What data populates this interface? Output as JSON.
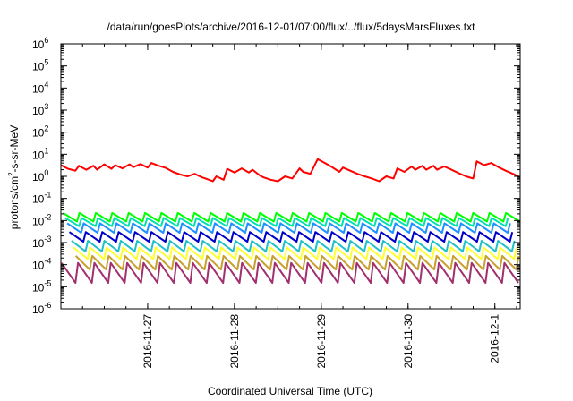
{
  "chart_data": {
    "type": "line",
    "title": "/data/run/goesPlots/archive/2016-12-01/07:00/flux/../flux/5daysMarsFluxes.txt",
    "xlabel": "Coordinated Universal Time (UTC)",
    "ylabel_parts": {
      "pre": "protons/cm",
      "sup": "2",
      "post": "-s-sr-MeV"
    },
    "yscale": "log",
    "ylim": [
      1e-06,
      1000000.0
    ],
    "xlim": [
      "2016-11-26T00:00",
      "2016-12-01T07:00"
    ],
    "x_ticks": [
      {
        "label": "2016-11-27",
        "at": "2016-11-27T00:00"
      },
      {
        "label": "2016-11-28",
        "at": "2016-11-28T00:00"
      },
      {
        "label": "2016-11-29",
        "at": "2016-11-29T00:00"
      },
      {
        "label": "2016-11-30",
        "at": "2016-11-30T00:00"
      },
      {
        "label": "2016-12-1",
        "at": "2016-12-01T00:00"
      }
    ],
    "y_ticks": [
      {
        "base": "10",
        "exp": "-6"
      },
      {
        "base": "10",
        "exp": "-5"
      },
      {
        "base": "10",
        "exp": "-4"
      },
      {
        "base": "10",
        "exp": "-3"
      },
      {
        "base": "10",
        "exp": "-2"
      },
      {
        "base": "10",
        "exp": "-1"
      },
      {
        "base": "10",
        "exp": "0"
      },
      {
        "base": "10",
        "exp": "1"
      },
      {
        "base": "10",
        "exp": "2"
      },
      {
        "base": "10",
        "exp": "3"
      },
      {
        "base": "10",
        "exp": "4"
      },
      {
        "base": "10",
        "exp": "5"
      },
      {
        "base": "10",
        "exp": "6"
      }
    ],
    "grid": false,
    "series": [
      {
        "color": "#ff0000",
        "x": [
          "2016-11-26T00:00",
          "2016-11-26T02:00",
          "2016-11-26T04:00",
          "2016-11-26T05:00",
          "2016-11-26T07:00",
          "2016-11-26T09:00",
          "2016-11-26T10:00",
          "2016-11-26T12:00",
          "2016-11-26T14:00",
          "2016-11-26T15:00",
          "2016-11-26T17:00",
          "2016-11-26T19:00",
          "2016-11-26T20:00",
          "2016-11-26T22:00",
          "2016-11-27T00:00",
          "2016-11-27T01:00",
          "2016-11-27T03:00",
          "2016-11-27T05:00",
          "2016-11-27T07:00",
          "2016-11-27T09:00",
          "2016-11-27T11:00",
          "2016-11-27T13:00",
          "2016-11-27T15:00",
          "2016-11-27T16:00",
          "2016-11-27T18:00",
          "2016-11-27T19:00",
          "2016-11-27T21:00",
          "2016-11-27T22:00",
          "2016-11-28T00:00",
          "2016-11-28T02:00",
          "2016-11-28T04:00",
          "2016-11-28T05:00",
          "2016-11-28T07:00",
          "2016-11-28T08:00",
          "2016-11-28T10:00",
          "2016-11-28T12:00",
          "2016-11-28T14:00",
          "2016-11-28T16:00",
          "2016-11-28T18:00",
          "2016-11-28T19:00",
          "2016-11-28T21:00",
          "2016-11-28T23:00",
          "2016-11-29T01:00",
          "2016-11-29T03:00",
          "2016-11-29T05:00",
          "2016-11-29T06:00",
          "2016-11-29T08:00",
          "2016-11-29T10:00",
          "2016-11-29T12:00",
          "2016-11-29T14:00",
          "2016-11-29T16:00",
          "2016-11-29T18:00",
          "2016-11-29T20:00",
          "2016-11-29T21:00",
          "2016-11-29T23:00",
          "2016-11-30T01:00",
          "2016-11-30T02:00",
          "2016-11-30T04:00",
          "2016-11-30T05:00",
          "2016-11-30T07:00",
          "2016-11-30T08:00",
          "2016-11-30T10:00",
          "2016-11-30T12:00",
          "2016-11-30T14:00",
          "2016-11-30T16:00",
          "2016-11-30T18:00",
          "2016-11-30T19:00",
          "2016-11-30T21:00",
          "2016-11-30T23:00",
          "2016-12-01T01:00",
          "2016-12-01T03:00",
          "2016-12-01T05:00",
          "2016-12-01T07:00"
        ],
        "values": [
          3.2,
          2.2,
          1.8,
          3.0,
          2.0,
          3.0,
          2.0,
          3.5,
          2.2,
          3.2,
          2.3,
          3.5,
          2.6,
          3.6,
          2.5,
          4.0,
          3.0,
          2.4,
          1.6,
          1.2,
          1.0,
          1.3,
          0.9,
          0.8,
          0.6,
          1.0,
          0.7,
          2.2,
          1.5,
          2.3,
          1.5,
          2.0,
          1.1,
          0.9,
          0.7,
          0.6,
          1.0,
          0.8,
          2.3,
          1.6,
          1.3,
          6.0,
          4.0,
          2.6,
          1.6,
          2.5,
          1.8,
          1.3,
          1.0,
          0.8,
          0.6,
          1.0,
          0.8,
          2.3,
          1.6,
          2.8,
          2.0,
          3.0,
          2.0,
          3.0,
          2.0,
          2.8,
          2.0,
          1.4,
          1.0,
          0.8,
          4.8,
          3.2,
          4.0,
          2.6,
          1.8,
          1.3,
          0.9
        ]
      },
      {
        "color": "#00ff00",
        "base": 0.022,
        "low": 0.009,
        "teeth": 28
      },
      {
        "color": "#00e0b0",
        "base": 0.013,
        "low": 0.0055,
        "teeth": 28
      },
      {
        "color": "#1e90ff",
        "base": 0.0075,
        "low": 0.0028,
        "teeth": 28
      },
      {
        "color": "#0000c8",
        "base": 0.003,
        "low": 0.0011,
        "teeth": 28
      },
      {
        "color": "#20c0c8",
        "base": 0.0012,
        "low": 0.0004,
        "teeth": 28
      },
      {
        "color": "#ffff30",
        "base": 0.0006,
        "low": 0.00018,
        "teeth": 28
      },
      {
        "color": "#c8a030",
        "base": 0.00025,
        "low": 6e-05,
        "teeth": 28
      },
      {
        "color": "#a0306e",
        "base": 0.00012,
        "low": 1.5e-05,
        "teeth": 28
      }
    ]
  }
}
